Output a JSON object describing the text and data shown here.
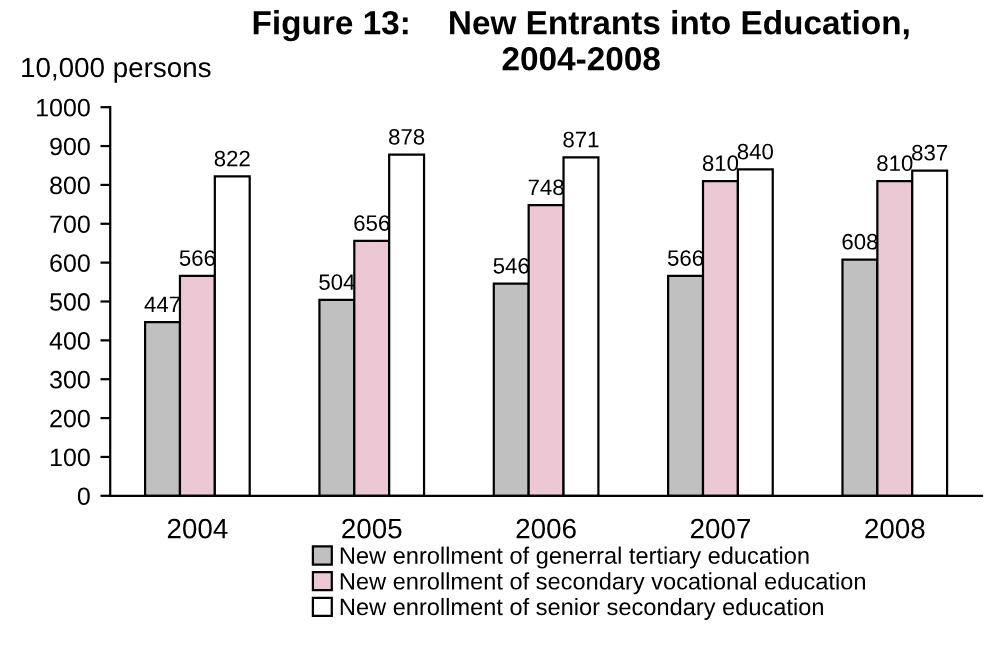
{
  "chart_data": {
    "type": "bar",
    "title": "Figure 13:    New Entrants into Education,\n2004-2008",
    "ylabel": "10,000 persons",
    "categories": [
      "2004",
      "2005",
      "2006",
      "2007",
      "2008"
    ],
    "series": [
      {
        "name": "New enrollment of generral tertiary education",
        "color": "#c0c0c0",
        "values": [
          447,
          504,
          546,
          566,
          608
        ]
      },
      {
        "name": "New enrollment of secondary vocational education",
        "color": "#ecc8d4",
        "values": [
          566,
          656,
          748,
          810,
          810
        ]
      },
      {
        "name": "New enrollment of senior secondary education",
        "color": "#ffffff",
        "values": [
          822,
          878,
          871,
          840,
          837
        ]
      }
    ],
    "ylim": [
      0,
      1000
    ],
    "yticks": [
      0,
      100,
      200,
      300,
      400,
      500,
      600,
      700,
      800,
      900,
      1000
    ],
    "data_labels": true,
    "grid": false,
    "legend": "bottom"
  }
}
